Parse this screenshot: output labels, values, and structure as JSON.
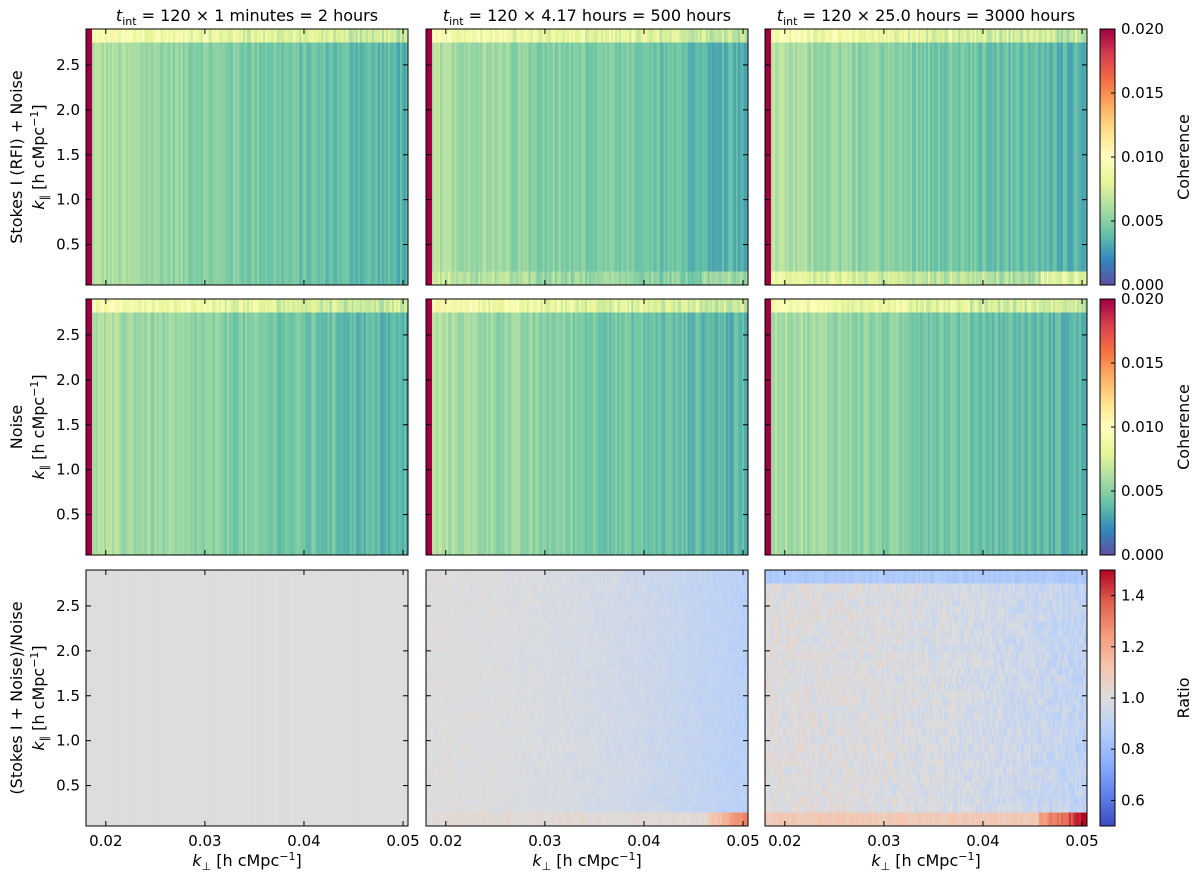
{
  "figure": {
    "colors": {
      "frame": "#000000"
    }
  },
  "chart_data": {
    "type": "heatmap",
    "columns": [
      {
        "title_italic": "t",
        "title_sub": "int",
        "title_rest": " = 120 × 1 minutes = 2 hours",
        "rfi_band": false
      },
      {
        "title_italic": "t",
        "title_sub": "int",
        "title_rest": " = 120 × 4.17 hours = 500 hours",
        "rfi_band": true
      },
      {
        "title_italic": "t",
        "title_sub": "int",
        "title_rest": " = 120 × 25.0 hours = 3000 hours",
        "rfi_band": true
      }
    ],
    "rows": [
      {
        "row_label": "Stokes I (RFI) + Noise",
        "kind": "coherence",
        "colorbar": {
          "label": "Coherence",
          "range": [
            0.0,
            0.02
          ],
          "ticks": [
            "0.000",
            "0.005",
            "0.010",
            "0.015",
            "0.020"
          ],
          "tick_values": [
            0.0,
            0.005,
            0.01,
            0.015,
            0.02
          ]
        }
      },
      {
        "row_label": "Noise",
        "kind": "coherence",
        "colorbar": {
          "label": "Coherence",
          "range": [
            0.0,
            0.02
          ],
          "ticks": [
            "0.000",
            "0.005",
            "0.010",
            "0.015",
            "0.020"
          ],
          "tick_values": [
            0.0,
            0.005,
            0.01,
            0.015,
            0.02
          ]
        }
      },
      {
        "row_label": "(Stokes I + Noise)/Noise",
        "kind": "ratio",
        "colorbar": {
          "label": "Ratio",
          "range": [
            0.5,
            1.5
          ],
          "ticks": [
            "0.6",
            "0.8",
            "1.0",
            "1.2",
            "1.4"
          ],
          "tick_values": [
            0.6,
            0.8,
            1.0,
            1.2,
            1.4
          ]
        }
      }
    ],
    "x_axis": {
      "label_symbol": "k",
      "label_sub": "⊥",
      "label_unit": " [h cMpc",
      "label_sup": "−1",
      "label_close": "]",
      "range": [
        0.018,
        0.0505
      ],
      "ticks": [
        "0.02",
        "0.03",
        "0.04",
        "0.05"
      ],
      "tick_values": [
        0.02,
        0.03,
        0.04,
        0.05
      ]
    },
    "y_axis": {
      "label_symbol": "k",
      "label_sub": "∥",
      "label_unit": " [h cMpc",
      "label_sup": "−1",
      "label_close": "]",
      "range": [
        0.05,
        2.9
      ],
      "ticks": [
        "0.5",
        "1.0",
        "1.5",
        "2.0",
        "2.5"
      ],
      "tick_values": [
        0.5,
        1.0,
        1.5,
        2.0,
        2.5
      ]
    },
    "colormaps": {
      "coherence": "Spectral_r",
      "ratio": "coolwarm"
    },
    "approx_values": {
      "coherence_body_low_k": 0.0065,
      "coherence_body_high_k": 0.0035,
      "coherence_top_band": 0.0095,
      "coherence_left_edge": 0.02,
      "coherence_top_band_kpar_min": 2.75,
      "ratio_low_kpar_band_max_2": 1.3,
      "ratio_low_kpar_band_max_3": 1.5,
      "ratio_body_min_3": 0.8
    }
  }
}
